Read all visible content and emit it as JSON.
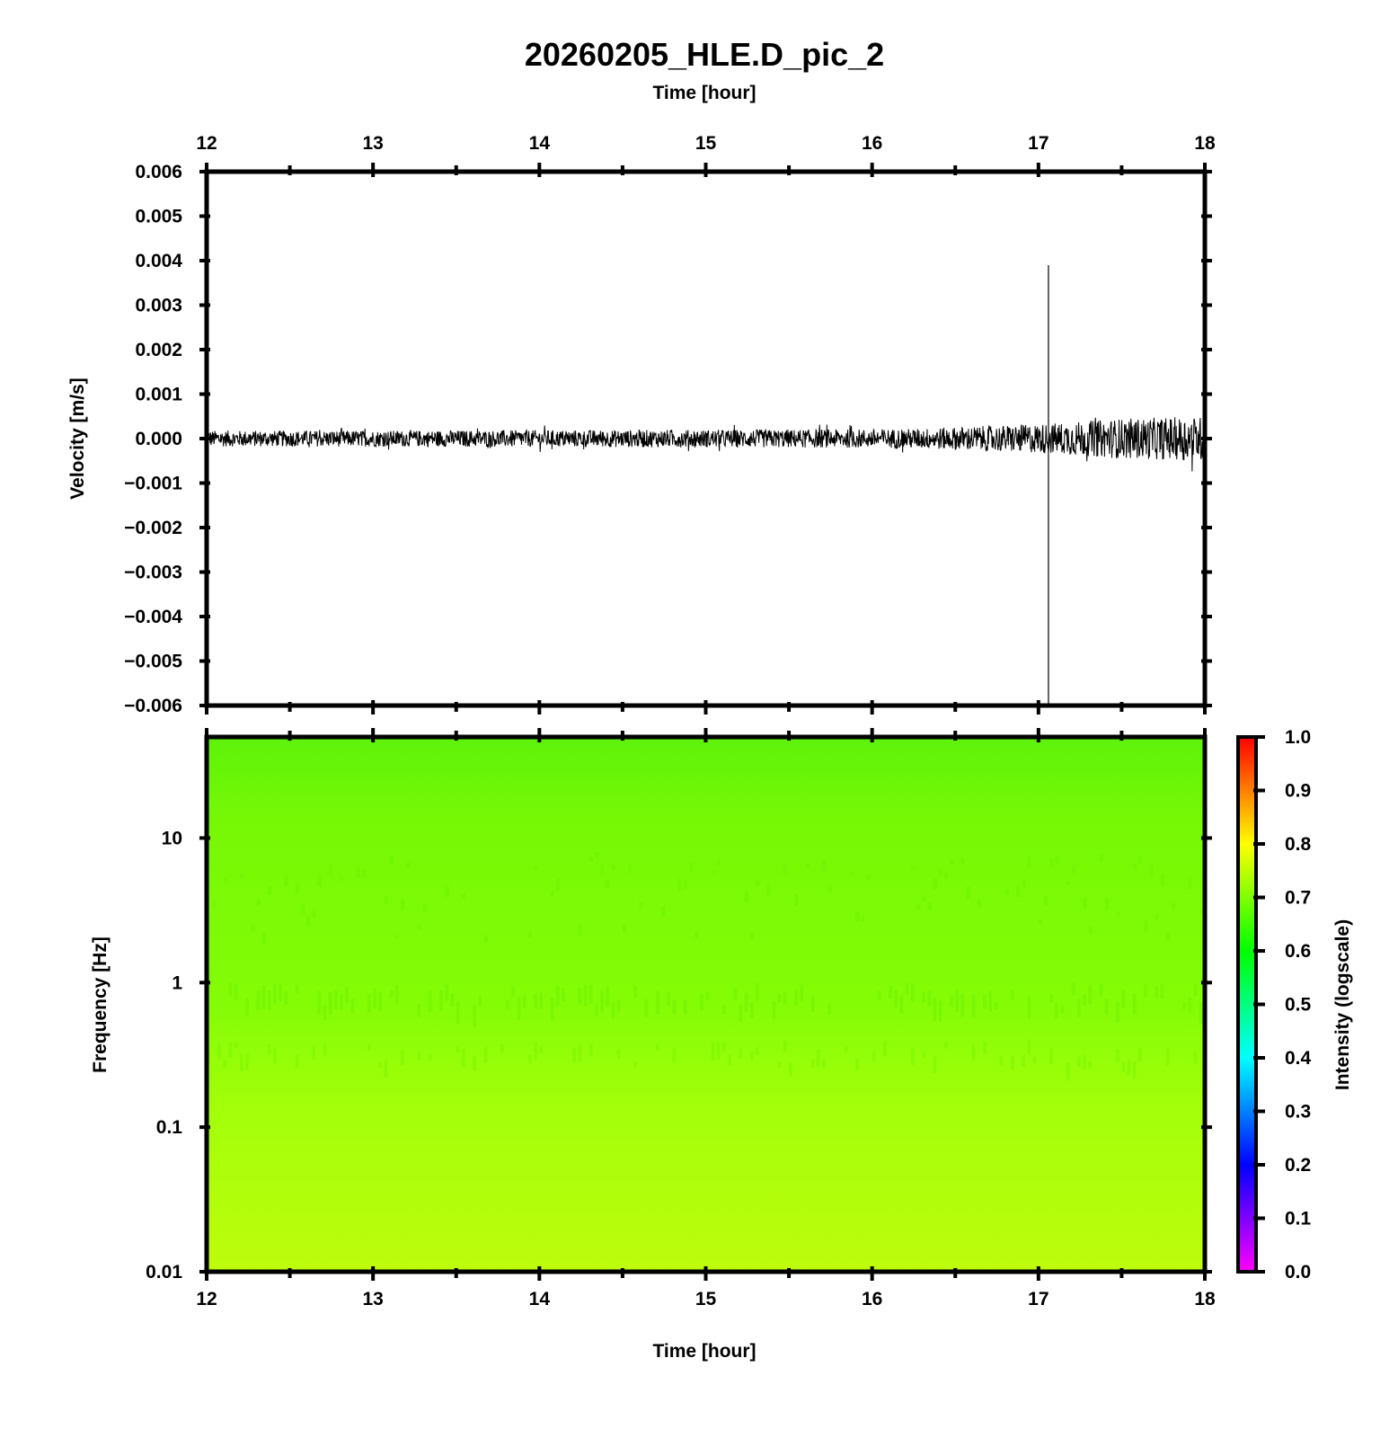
{
  "figure": {
    "title": "20260205_HLE.D_pic_2"
  },
  "chart_data": [
    {
      "type": "line",
      "panel": "waveform",
      "title": "20260205_HLE.D_pic_2",
      "xlabel_top": "Time [hour]",
      "ylabel": "Velocity [m/s]",
      "xlim": [
        12,
        18
      ],
      "ylim": [
        -0.006,
        0.006
      ],
      "x_ticks": [
        "12",
        "13",
        "14",
        "15",
        "16",
        "17",
        "18"
      ],
      "y_ticks": [
        "0.006",
        "0.005",
        "0.004",
        "0.003",
        "0.002",
        "0.001",
        "0.000",
        "−0.001",
        "−0.002",
        "−0.003",
        "−0.004",
        "−0.005",
        "−0.006"
      ],
      "grid": false,
      "series_color": "#000000",
      "noise_envelope": {
        "x": [
          12.0,
          13.0,
          14.0,
          15.0,
          16.0,
          16.3,
          16.5,
          16.8,
          17.0,
          17.3,
          17.5,
          17.8,
          18.0
        ],
        "amplitude": [
          0.00018,
          0.00018,
          0.00019,
          0.0002,
          0.00021,
          0.00023,
          0.00026,
          0.0003,
          0.00033,
          0.0004,
          0.00045,
          0.00048,
          0.0005
        ]
      },
      "spike": {
        "x": 17.06,
        "ymax": 0.0039,
        "ymin": -0.006
      }
    },
    {
      "type": "heatmap",
      "panel": "spectrogram",
      "xlabel": "Time [hour]",
      "ylabel": "Frequency [Hz]",
      "xlim": [
        12,
        18
      ],
      "ylim": [
        0.01,
        50
      ],
      "yscale": "log",
      "x_ticks": [
        "12",
        "13",
        "14",
        "15",
        "16",
        "17",
        "18"
      ],
      "y_ticks": [
        "10",
        "1",
        "0.1",
        "0.01"
      ],
      "colorbar": {
        "label": "Intensity (logscale)",
        "range": [
          0.0,
          1.0
        ],
        "ticks": [
          "1.0",
          "0.9",
          "0.8",
          "0.7",
          "0.6",
          "0.5",
          "0.4",
          "0.3",
          "0.2",
          "0.1",
          "0.0"
        ],
        "colors": [
          "#ff00ff",
          "#0000ff",
          "#00ffff",
          "#00ff00",
          "#ffff00",
          "#ff0000"
        ]
      },
      "intensity_profile": {
        "frequency_hz": [
          50,
          20,
          10,
          5,
          2,
          1,
          0.5,
          0.3,
          0.1,
          0.03,
          0.01
        ],
        "intensity": [
          0.66,
          0.67,
          0.68,
          0.69,
          0.7,
          0.7,
          0.71,
          0.72,
          0.73,
          0.74,
          0.75
        ]
      }
    }
  ]
}
